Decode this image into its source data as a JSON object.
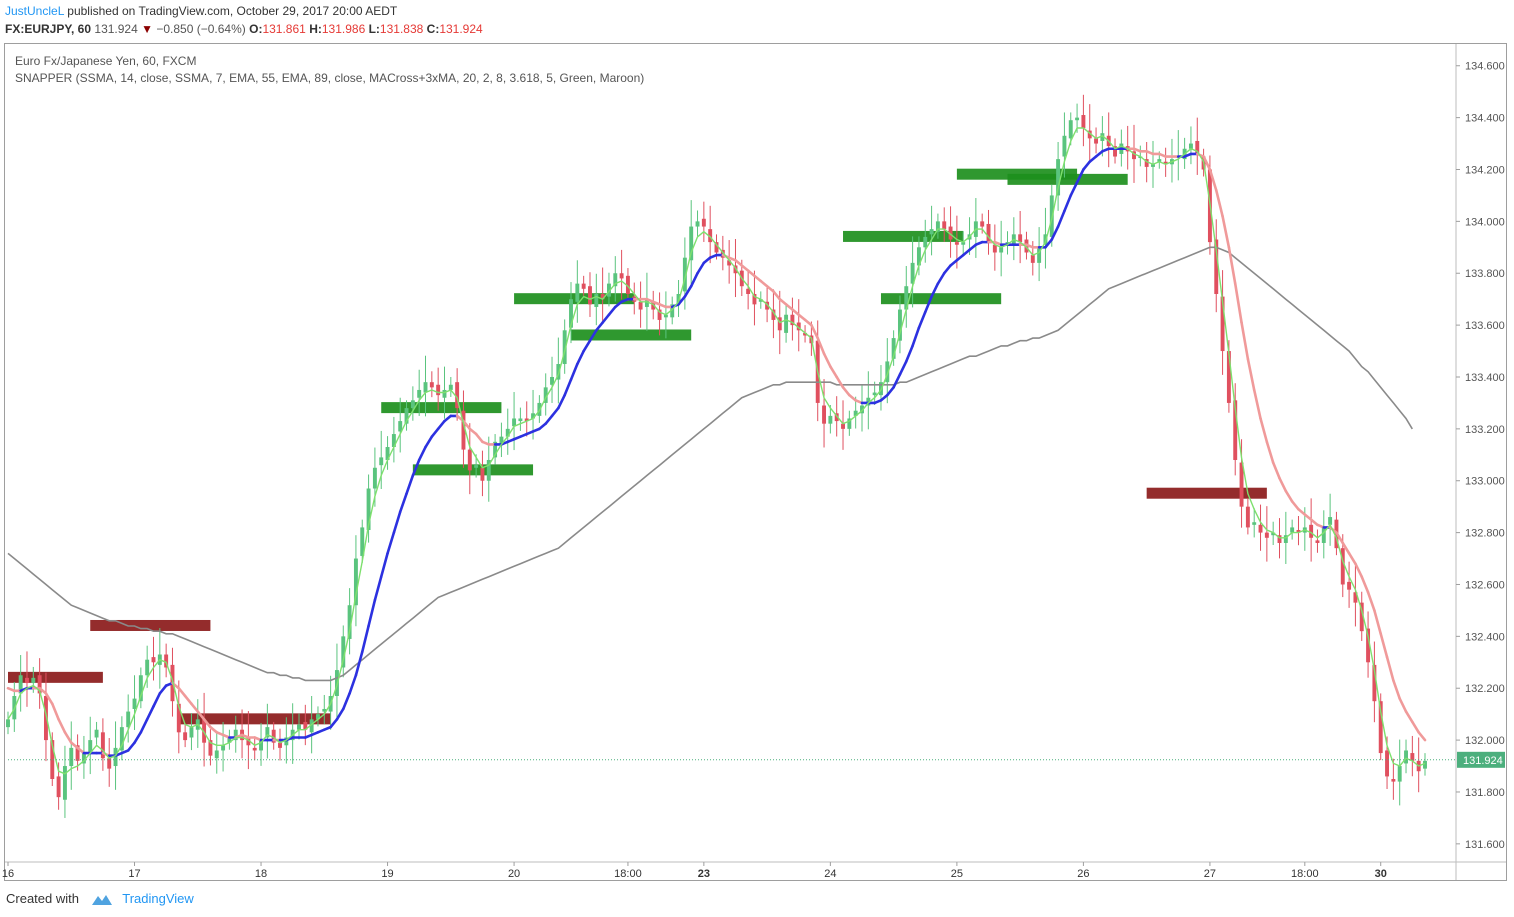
{
  "header": {
    "author": "JustUncleL",
    "published_text": "published on TradingView.com, October 29, 2017 20:00 AEDT",
    "symbol": "FX:EURJPY, 60",
    "last": "131.924",
    "down_arrow": "▼",
    "change": "−0.850 (−0.64%)",
    "o_label": "O:",
    "o_value": "131.861",
    "h_label": "H:",
    "h_value": "131.986",
    "l_label": "L:",
    "l_value": "131.838",
    "c_label": "C:",
    "c_value": "131.924"
  },
  "legend": {
    "instrument": "Euro Fx/Japanese Yen, 60, FXCM",
    "indicator": "SNAPPER (SSMA, 14, close, SSMA, 7, EMA, 55, EMA, 89, close, MACross+3xMA, 20, 2, 8, 3.618, 5, Green, Maroon)"
  },
  "footer": {
    "created_with": "Created with",
    "brand": "TradingView"
  },
  "colors": {
    "up": "#5ac47e",
    "down": "#e0505f",
    "fast_ma": "#7ee06e",
    "slow_ma": "#2c31e0",
    "slow_ma_bear": "#f09a9a",
    "long_ma": "#8a8a8a",
    "zone_green": "#1d8f1d",
    "zone_maroon": "#8b1a1a",
    "price_line": "#4caf7d"
  },
  "chart_data": {
    "type": "candlestick",
    "interval": "60",
    "y_ticks": [
      "131.600",
      "131.800",
      "132.000",
      "132.200",
      "132.400",
      "132.600",
      "132.800",
      "133.000",
      "133.200",
      "133.400",
      "133.600",
      "133.800",
      "134.000",
      "134.200",
      "134.400",
      "134.600"
    ],
    "ylim": [
      131.53,
      134.68
    ],
    "x_ticks": [
      {
        "i": 0,
        "label": "16"
      },
      {
        "i": 20,
        "label": "17"
      },
      {
        "i": 40,
        "label": "18"
      },
      {
        "i": 60,
        "label": "19"
      },
      {
        "i": 80,
        "label": "20"
      },
      {
        "i": 98,
        "label": "18:00"
      },
      {
        "i": 110,
        "label": "23",
        "bold": true
      },
      {
        "i": 130,
        "label": "24"
      },
      {
        "i": 150,
        "label": "25"
      },
      {
        "i": 170,
        "label": "26"
      },
      {
        "i": 190,
        "label": "27"
      },
      {
        "i": 205,
        "label": "18:00"
      },
      {
        "i": 217,
        "label": "30",
        "bold": true
      }
    ],
    "last_price": {
      "value": 131.924,
      "label": "131.924"
    },
    "close": [
      132.08,
      132.17,
      132.25,
      132.22,
      132.24,
      132.18,
      132.0,
      131.85,
      131.78,
      131.9,
      131.97,
      131.92,
      131.95,
      132.0,
      132.04,
      131.93,
      131.89,
      131.97,
      132.05,
      132.11,
      132.16,
      132.25,
      132.31,
      132.3,
      132.33,
      132.28,
      132.15,
      132.03,
      132.0,
      132.05,
      132.08,
      131.99,
      131.94,
      131.96,
      131.98,
      132.01,
      132.04,
      132.0,
      131.98,
      131.96,
      132.0,
      132.05,
      131.99,
      131.97,
      132.01,
      132.04,
      132.06,
      132.04,
      132.08,
      132.1,
      132.12,
      132.17,
      132.27,
      132.4,
      132.52,
      132.7,
      132.82,
      132.97,
      133.05,
      133.09,
      133.13,
      133.18,
      133.23,
      133.28,
      133.31,
      133.35,
      133.38,
      133.36,
      133.33,
      133.35,
      133.37,
      133.28,
      133.12,
      133.04,
      133.06,
      133.0,
      133.08,
      133.15,
      133.17,
      133.2,
      133.24,
      133.24,
      133.23,
      133.26,
      133.3,
      133.36,
      133.4,
      133.45,
      133.58,
      133.7,
      133.76,
      133.74,
      133.68,
      133.72,
      133.7,
      133.76,
      133.8,
      133.78,
      133.72,
      133.69,
      133.66,
      133.7,
      133.66,
      133.62,
      133.64,
      133.68,
      133.72,
      133.86,
      133.98,
      134.0,
      133.98,
      133.92,
      133.88,
      133.86,
      133.83,
      133.8,
      133.75,
      133.72,
      133.68,
      133.7,
      133.66,
      133.62,
      133.58,
      133.64,
      133.6,
      133.58,
      133.56,
      133.53,
      133.3,
      133.22,
      133.25,
      133.23,
      133.2,
      133.24,
      133.27,
      133.29,
      133.32,
      133.34,
      133.38,
      133.46,
      133.55,
      133.66,
      133.75,
      133.84,
      133.9,
      133.94,
      133.97,
      134.0,
      133.97,
      133.93,
      133.91,
      133.92,
      133.95,
      134.0,
      133.98,
      133.92,
      133.88,
      133.9,
      133.92,
      133.95,
      133.92,
      133.88,
      133.84,
      133.9,
      133.95,
      134.1,
      134.24,
      134.33,
      134.39,
      134.4,
      134.36,
      134.32,
      134.3,
      134.34,
      134.29,
      134.25,
      134.3,
      134.27,
      134.24,
      134.25,
      134.21,
      134.22,
      134.24,
      134.22,
      134.24,
      134.25,
      134.28,
      134.3,
      134.26,
      134.2,
      133.92,
      133.72,
      133.5,
      133.3,
      133.08,
      132.9,
      132.82,
      132.84,
      132.8,
      132.78,
      132.8,
      132.76,
      132.79,
      132.82,
      132.8,
      132.82,
      132.78,
      132.76,
      132.82,
      132.86,
      132.74,
      132.6,
      132.58,
      132.53,
      132.42,
      132.3,
      132.15,
      131.95,
      131.86,
      131.84,
      131.9,
      131.96,
      131.92,
      131.88,
      131.92
    ],
    "series": [
      {
        "type": "line",
        "role": "fast",
        "values": [
          132.08,
          132.12,
          132.18,
          132.2,
          132.21,
          132.19,
          132.1,
          131.98,
          131.88,
          131.87,
          131.89,
          131.9,
          131.92,
          131.95,
          131.98,
          131.96,
          131.93,
          131.94,
          131.98,
          132.04,
          132.1,
          132.17,
          132.24,
          132.28,
          132.31,
          132.3,
          132.23,
          132.13,
          132.06,
          132.05,
          132.06,
          132.03,
          131.99,
          131.98,
          131.98,
          131.99,
          132.01,
          132.01,
          132.0,
          131.98,
          131.99,
          132.02,
          132.01,
          131.99,
          132.0,
          132.02,
          132.04,
          132.04,
          132.06,
          132.08,
          132.1,
          132.14,
          132.21,
          132.31,
          132.42,
          132.56,
          132.69,
          132.83,
          132.94,
          133.02,
          133.08,
          133.13,
          133.18,
          133.23,
          133.27,
          133.31,
          133.34,
          133.35,
          133.34,
          133.34,
          133.35,
          133.32,
          133.22,
          133.13,
          133.09,
          133.05,
          133.06,
          133.1,
          133.14,
          133.17,
          133.21,
          133.22,
          133.23,
          133.24,
          133.27,
          133.32,
          133.36,
          133.41,
          133.5,
          133.6,
          133.68,
          133.71,
          133.7,
          133.71,
          133.7,
          133.73,
          133.76,
          133.77,
          133.75,
          133.72,
          133.69,
          133.69,
          133.68,
          133.65,
          133.64,
          133.66,
          133.69,
          133.78,
          133.88,
          133.94,
          133.96,
          133.94,
          133.91,
          133.88,
          133.85,
          133.82,
          133.78,
          133.75,
          133.71,
          133.7,
          133.68,
          133.65,
          133.61,
          133.62,
          133.61,
          133.59,
          133.57,
          133.55,
          133.42,
          133.32,
          133.28,
          133.25,
          133.22,
          133.23,
          133.25,
          133.27,
          133.3,
          133.32,
          133.35,
          133.41,
          133.48,
          133.57,
          133.66,
          133.75,
          133.83,
          133.89,
          133.93,
          133.97,
          133.97,
          133.95,
          133.93,
          133.92,
          133.94,
          133.97,
          133.97,
          133.94,
          133.91,
          133.9,
          133.91,
          133.93,
          133.92,
          133.9,
          133.87,
          133.88,
          133.92,
          134.01,
          134.13,
          134.23,
          134.31,
          134.36,
          134.36,
          134.34,
          134.32,
          134.33,
          134.31,
          134.28,
          134.29,
          134.28,
          134.26,
          134.25,
          134.23,
          134.22,
          134.23,
          134.22,
          134.23,
          134.24,
          134.26,
          134.28,
          134.27,
          134.23,
          134.07,
          133.89,
          133.69,
          133.49,
          133.28,
          133.09,
          132.95,
          132.89,
          132.84,
          132.81,
          132.8,
          132.78,
          132.78,
          132.8,
          132.8,
          132.81,
          132.8,
          132.78,
          132.8,
          132.83,
          132.78,
          132.69,
          132.63,
          132.58,
          132.5,
          132.4,
          132.27,
          132.11,
          131.98,
          131.91,
          131.9,
          131.93,
          131.92,
          131.9,
          131.91
        ]
      },
      {
        "type": "line",
        "role": "slow",
        "values": [
          132.2,
          132.19,
          132.19,
          132.2,
          132.2,
          132.2,
          132.18,
          132.14,
          132.08,
          132.03,
          131.99,
          131.97,
          131.95,
          131.95,
          131.95,
          131.95,
          131.94,
          131.94,
          131.95,
          131.96,
          131.99,
          132.03,
          132.08,
          132.13,
          132.18,
          132.21,
          132.22,
          132.2,
          132.17,
          132.14,
          132.11,
          132.08,
          132.05,
          132.03,
          132.02,
          132.01,
          132.01,
          132.02,
          132.01,
          132.01,
          132.0,
          132.0,
          132.0,
          132.0,
          132.0,
          132.01,
          132.01,
          132.01,
          132.02,
          132.03,
          132.04,
          132.05,
          132.08,
          132.12,
          132.18,
          132.25,
          132.34,
          132.44,
          132.54,
          132.63,
          132.72,
          132.8,
          132.88,
          132.95,
          133.02,
          133.08,
          133.13,
          133.17,
          133.2,
          133.23,
          133.25,
          133.25,
          133.23,
          133.2,
          133.18,
          133.15,
          133.14,
          133.14,
          133.14,
          133.15,
          133.16,
          133.17,
          133.18,
          133.19,
          133.2,
          133.22,
          133.25,
          133.28,
          133.33,
          133.39,
          133.45,
          133.5,
          133.54,
          133.58,
          133.61,
          133.64,
          133.67,
          133.69,
          133.7,
          133.7,
          133.7,
          133.7,
          133.69,
          133.68,
          133.67,
          133.67,
          133.68,
          133.71,
          133.75,
          133.8,
          133.84,
          133.86,
          133.87,
          133.87,
          133.86,
          133.85,
          133.83,
          133.81,
          133.79,
          133.77,
          133.75,
          133.73,
          133.7,
          133.68,
          133.66,
          133.64,
          133.62,
          133.6,
          133.55,
          133.49,
          133.44,
          133.4,
          133.36,
          133.33,
          133.31,
          133.3,
          133.3,
          133.3,
          133.31,
          133.33,
          133.36,
          133.41,
          133.46,
          133.52,
          133.59,
          133.65,
          133.71,
          133.76,
          133.8,
          133.83,
          133.85,
          133.87,
          133.89,
          133.91,
          133.92,
          133.92,
          133.92,
          133.91,
          133.91,
          133.91,
          133.91,
          133.91,
          133.9,
          133.9,
          133.9,
          133.93,
          133.98,
          134.04,
          134.1,
          134.15,
          134.2,
          134.23,
          134.25,
          134.27,
          134.28,
          134.28,
          134.28,
          134.28,
          134.28,
          134.27,
          134.27,
          134.26,
          134.26,
          134.25,
          134.25,
          134.25,
          134.25,
          134.26,
          134.26,
          134.25,
          134.2,
          134.12,
          134.02,
          133.9,
          133.76,
          133.61,
          133.47,
          133.35,
          133.24,
          133.15,
          133.07,
          133.01,
          132.96,
          132.92,
          132.89,
          132.87,
          132.85,
          132.83,
          132.82,
          132.82,
          132.8,
          132.76,
          132.72,
          132.68,
          132.63,
          132.57,
          132.5,
          132.41,
          132.32,
          132.23,
          132.16,
          132.11,
          132.07,
          132.03,
          132.0
        ]
      },
      {
        "type": "line",
        "role": "long",
        "values": [
          132.72,
          132.7,
          132.68,
          132.66,
          132.64,
          132.62,
          132.6,
          132.58,
          132.56,
          132.54,
          132.52,
          132.51,
          132.5,
          132.49,
          132.48,
          132.47,
          132.46,
          132.46,
          132.45,
          132.44,
          132.44,
          132.43,
          132.43,
          132.42,
          132.42,
          132.41,
          132.41,
          132.4,
          132.39,
          132.38,
          132.37,
          132.36,
          132.35,
          132.34,
          132.33,
          132.32,
          132.31,
          132.3,
          132.29,
          132.28,
          132.27,
          132.26,
          132.26,
          132.25,
          132.25,
          132.24,
          132.24,
          132.23,
          132.23,
          132.23,
          132.23,
          132.23,
          132.24,
          132.25,
          132.27,
          132.29,
          132.31,
          132.33,
          132.35,
          132.37,
          132.39,
          132.41,
          132.43,
          132.45,
          132.47,
          132.49,
          132.51,
          132.53,
          132.55,
          132.56,
          132.57,
          132.58,
          132.59,
          132.6,
          132.61,
          132.62,
          132.63,
          132.64,
          132.65,
          132.66,
          132.67,
          132.68,
          132.69,
          132.7,
          132.71,
          132.72,
          132.73,
          132.74,
          132.76,
          132.78,
          132.8,
          132.82,
          132.84,
          132.86,
          132.88,
          132.9,
          132.92,
          132.94,
          132.96,
          132.98,
          133.0,
          133.02,
          133.04,
          133.06,
          133.08,
          133.1,
          133.12,
          133.14,
          133.16,
          133.18,
          133.2,
          133.22,
          133.24,
          133.26,
          133.28,
          133.3,
          133.32,
          133.33,
          133.34,
          133.35,
          133.36,
          133.37,
          133.37,
          133.38,
          133.38,
          133.38,
          133.38,
          133.38,
          133.38,
          133.38,
          133.38,
          133.37,
          133.37,
          133.37,
          133.37,
          133.37,
          133.37,
          133.37,
          133.37,
          133.37,
          133.37,
          133.38,
          133.38,
          133.39,
          133.4,
          133.41,
          133.42,
          133.43,
          133.44,
          133.45,
          133.46,
          133.47,
          133.48,
          133.48,
          133.49,
          133.5,
          133.51,
          133.52,
          133.52,
          133.53,
          133.54,
          133.54,
          133.55,
          133.55,
          133.56,
          133.57,
          133.58,
          133.6,
          133.62,
          133.64,
          133.66,
          133.68,
          133.7,
          133.72,
          133.74,
          133.75,
          133.76,
          133.77,
          133.78,
          133.79,
          133.8,
          133.81,
          133.82,
          133.83,
          133.84,
          133.85,
          133.86,
          133.87,
          133.88,
          133.89,
          133.9,
          133.9,
          133.89,
          133.88,
          133.86,
          133.84,
          133.82,
          133.8,
          133.78,
          133.76,
          133.74,
          133.72,
          133.7,
          133.68,
          133.66,
          133.64,
          133.62,
          133.6,
          133.58,
          133.56,
          133.54,
          133.52,
          133.5,
          133.47,
          133.44,
          133.42,
          133.39,
          133.36,
          133.33,
          133.3,
          133.27,
          133.24,
          133.2
        ]
      }
    ],
    "zones": [
      {
        "kind": "maroon",
        "i0": 0,
        "i1": 15,
        "level": 132.24
      },
      {
        "kind": "maroon",
        "i0": 13,
        "i1": 32,
        "level": 132.44
      },
      {
        "kind": "maroon",
        "i0": 27,
        "i1": 51,
        "level": 132.08
      },
      {
        "kind": "green",
        "i0": 59,
        "i1": 78,
        "level": 133.28
      },
      {
        "kind": "green",
        "i0": 64,
        "i1": 83,
        "level": 133.04
      },
      {
        "kind": "green",
        "i0": 80,
        "i1": 99,
        "level": 133.7
      },
      {
        "kind": "green",
        "i0": 89,
        "i1": 108,
        "level": 133.56
      },
      {
        "kind": "green",
        "i0": 132,
        "i1": 151,
        "level": 133.94
      },
      {
        "kind": "green",
        "i0": 138,
        "i1": 157,
        "level": 133.7
      },
      {
        "kind": "green",
        "i0": 150,
        "i1": 169,
        "level": 134.18
      },
      {
        "kind": "green",
        "i0": 158,
        "i1": 177,
        "level": 134.16
      },
      {
        "kind": "maroon",
        "i0": 180,
        "i1": 199,
        "level": 132.95
      }
    ]
  }
}
